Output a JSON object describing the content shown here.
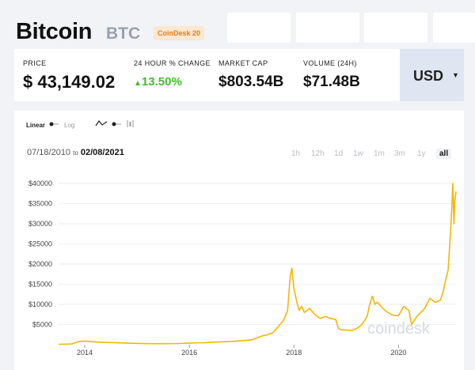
{
  "header": {
    "coin_name": "Bitcoin",
    "coin_symbol": "BTC",
    "badge": "CoinDesk 20"
  },
  "stats": {
    "price_label": "PRICE",
    "price_value": "$ 43,149.02",
    "change_label": "24 HOUR % CHANGE",
    "change_value": "13.50%",
    "market_cap_label": "MARKET CAP",
    "market_cap_value": "$803.54B",
    "volume_label": "VOLUME (24H)",
    "volume_value": "$71.48B"
  },
  "currency": {
    "selected": "USD"
  },
  "chart_controls": {
    "linear": "Linear",
    "log": "Log",
    "date_from": "07/18/2010",
    "to": "to",
    "date_to": "02/08/2021",
    "timeframes": [
      "1h",
      "12h",
      "1d",
      "1w",
      "1m",
      "3m",
      "1y",
      "all"
    ],
    "active_timeframe": "all"
  },
  "watermark": "coindesk",
  "colors": {
    "line": "#f2b705",
    "up": "#46b830",
    "badge_text": "#e07d20"
  },
  "chart_data": {
    "type": "line",
    "y_ticks": [
      "$40000",
      "$35000",
      "$30000",
      "$25000",
      "$20000",
      "$15000",
      "$10000",
      "$5000"
    ],
    "x_ticks": [
      "2014",
      "2016",
      "2018",
      "2020"
    ],
    "ylim": [
      0,
      40000
    ],
    "x_range": [
      2013.5,
      2021.1
    ],
    "series": [
      {
        "x": [
          2013.5,
          2013.75,
          2013.9,
          2014.0,
          2014.3,
          2014.6,
          2014.9,
          2015.2,
          2015.5,
          2015.8,
          2016.0,
          2016.3,
          2016.5,
          2016.8,
          2017.0,
          2017.2,
          2017.4,
          2017.5,
          2017.6,
          2017.7,
          2017.8,
          2017.88,
          2017.93,
          2017.96,
          2018.0,
          2018.05,
          2018.1,
          2018.15,
          2018.2,
          2018.3,
          2018.4,
          2018.5,
          2018.6,
          2018.7,
          2018.8,
          2018.85,
          2018.9,
          2019.0,
          2019.1,
          2019.2,
          2019.3,
          2019.4,
          2019.45,
          2019.5,
          2019.55,
          2019.6,
          2019.7,
          2019.8,
          2019.9,
          2020.0,
          2020.1,
          2020.2,
          2020.25,
          2020.35,
          2020.5,
          2020.6,
          2020.7,
          2020.8,
          2020.85,
          2020.9,
          2020.95,
          2021.0,
          2021.02,
          2021.04,
          2021.06,
          2021.08,
          2021.1
        ],
        "y": [
          100,
          200,
          800,
          900,
          600,
          500,
          350,
          250,
          250,
          300,
          420,
          500,
          650,
          800,
          1000,
          1200,
          2200,
          2500,
          3000,
          4500,
          6000,
          8500,
          17000,
          19000,
          14000,
          11000,
          8500,
          9500,
          8000,
          9000,
          7500,
          6500,
          7000,
          6500,
          6300,
          4000,
          3700,
          3600,
          3500,
          4000,
          5000,
          7000,
          10000,
          12000,
          10000,
          10500,
          9000,
          8000,
          7300,
          7200,
          9500,
          8500,
          5000,
          7000,
          9000,
          11500,
          10500,
          11000,
          13000,
          16000,
          18500,
          29000,
          34000,
          40000,
          30000,
          36000,
          38000
        ]
      }
    ]
  }
}
